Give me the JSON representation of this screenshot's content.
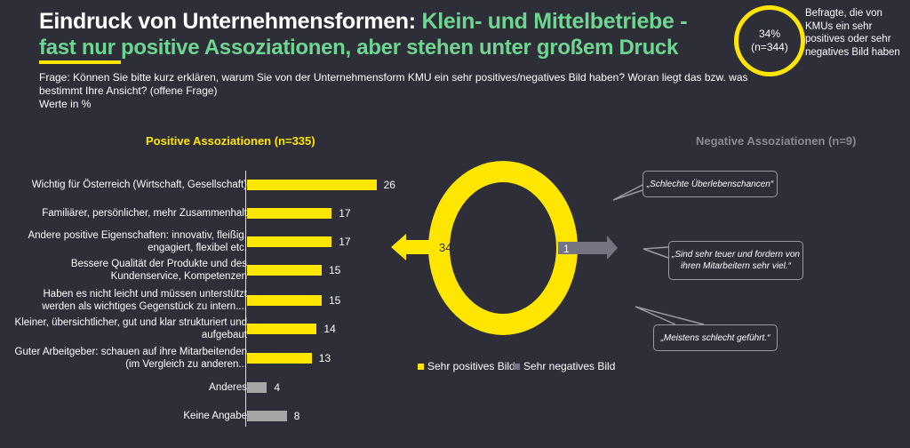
{
  "header": {
    "title_white": "Eindruck von Unternehmensformen: ",
    "title_green": "Klein- und Mittelbetriebe -",
    "subtitle": "fast nur positive Assoziationen, aber stehen unter großem Druck",
    "question": "Frage: Können Sie bitte kurz erklären, warum Sie von der Unternehmensform KMU ein sehr positives/negatives Bild haben? Woran liegt das bzw. was bestimmt Ihre Ansicht? (offene Frage)",
    "unit": "Werte in %"
  },
  "badge": {
    "percent": "34%",
    "n": "(n=344)",
    "note": "Befragte, die von KMUs ein sehr positives oder sehr negatives Bild haben"
  },
  "colors": {
    "yellow": "#ffe600",
    "gray": "#a6a6a6",
    "neg": "#747482",
    "green": "#6fd692"
  },
  "chart_data": [
    {
      "type": "bar",
      "title": "Positive Assoziationen (n=335)",
      "categories": [
        "Wichtig für Österreich (Wirtschaft, Gesellschaft)",
        "Familiärer, persönlicher, mehr Zusammenhalt",
        "Andere positive Eigenschaften: innovativ, fleißig, engagiert, flexibel etc.",
        "Bessere Qualität der Produkte und des Kundenservice, Kompetenzen",
        "Haben es nicht leicht und müssen unterstützt werden als wichtiges Gegenstück zu intern....",
        "Kleiner, übersichtlicher, gut und klar strukturiert und aufgebaut",
        "Guter Arbeitgeber: schauen auf ihre Mitarbeitenden (im Vergleich zu anderen...",
        "Anderes",
        "Keine Angabe"
      ],
      "values": [
        26,
        17,
        17,
        15,
        15,
        14,
        13,
        4,
        8
      ],
      "bar_colors": [
        "yellow",
        "yellow",
        "yellow",
        "yellow",
        "yellow",
        "yellow",
        "yellow",
        "gray",
        "gray"
      ]
    },
    {
      "type": "pie",
      "slices": [
        {
          "name": "Sehr positives Bild",
          "value": 34
        },
        {
          "name": "Sehr negatives Bild",
          "value": 1
        }
      ]
    }
  ],
  "negative": {
    "title": "Negative Assoziationen (n=9)",
    "quotes": [
      "„Schlechte Überlebenschancen“",
      "„Sind sehr teuer und fordern von ihren Mitarbeitern sehr viel.“",
      "„Meistens schlecht geführt.“"
    ]
  },
  "legend": [
    "Sehr positives Bild",
    "Sehr negatives Bild"
  ]
}
